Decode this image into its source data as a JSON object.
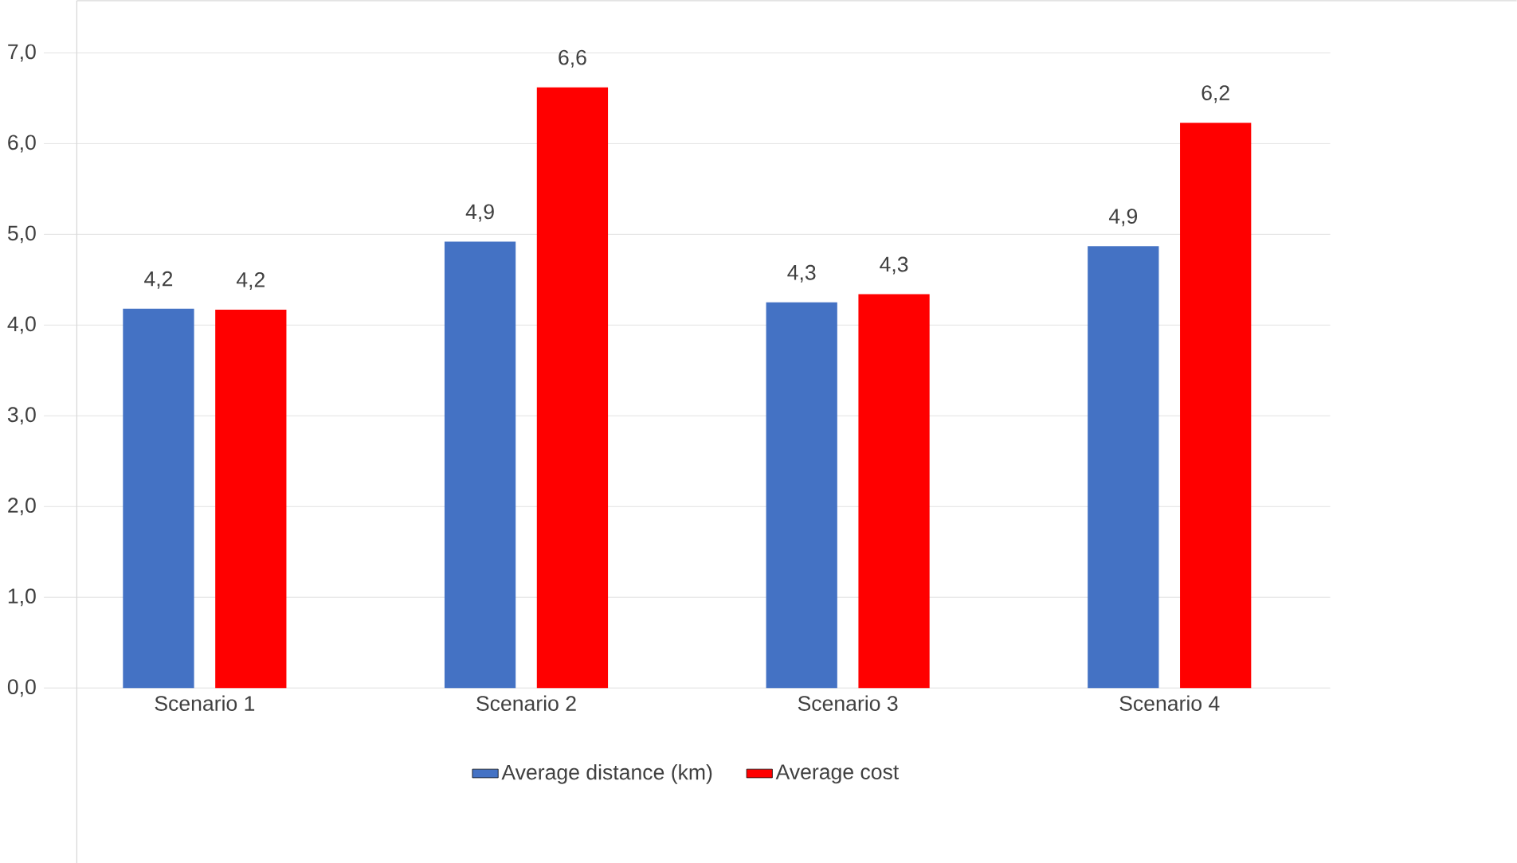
{
  "chart_data": {
    "type": "bar",
    "categories": [
      "Scenario 1",
      "Scenario 2",
      "Scenario 3",
      "Scenario 4"
    ],
    "series": [
      {
        "name": "Average distance (km)",
        "color": "#4472c4",
        "values": [
          4.18,
          4.92,
          4.25,
          4.87
        ],
        "value_labels": [
          "4,2",
          "4,9",
          "4,3",
          "4,9"
        ]
      },
      {
        "name": "Average cost",
        "color": "#ff0000",
        "values": [
          4.17,
          6.62,
          4.34,
          6.23
        ],
        "value_labels": [
          "4,2",
          "6,6",
          "4,3",
          "6,2"
        ]
      }
    ],
    "ylim": [
      0,
      7
    ],
    "yticks": [
      {
        "value": 0,
        "label": "0,0"
      },
      {
        "value": 1,
        "label": "1,0"
      },
      {
        "value": 2,
        "label": "2,0"
      },
      {
        "value": 3,
        "label": "3,0"
      },
      {
        "value": 4,
        "label": "4,0"
      },
      {
        "value": 5,
        "label": "5,0"
      },
      {
        "value": 6,
        "label": "6,0"
      },
      {
        "value": 7,
        "label": "7,0"
      }
    ],
    "grid": "y",
    "legend": "bottom"
  }
}
